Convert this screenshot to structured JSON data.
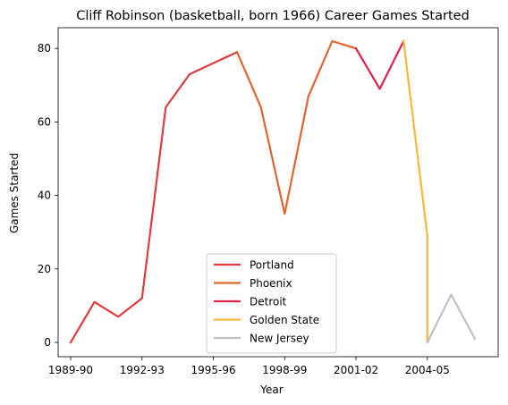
{
  "chart_data": {
    "type": "line",
    "title": "Cliff Robinson (basketball, born 1966) Career Games Started",
    "xlabel": "Year",
    "ylabel": "Games Started",
    "x_ticks": [
      "1989-90",
      "1992-93",
      "1995-96",
      "1998-99",
      "2001-02",
      "2004-05"
    ],
    "y_ticks": [
      0,
      20,
      40,
      60,
      80
    ],
    "xlim": [
      "1989-90",
      "2006-07"
    ],
    "ylim": [
      0,
      82
    ],
    "grid": false,
    "legend_position": "lower center",
    "series": [
      {
        "name": "Portland",
        "color": "#dc3d40",
        "x": [
          "1989-90",
          "1990-91",
          "1991-92",
          "1992-93",
          "1993-94",
          "1994-95",
          "1995-96",
          "1996-97"
        ],
        "values": [
          0,
          11,
          7,
          12,
          64,
          73,
          76,
          79
        ]
      },
      {
        "name": "Phoenix",
        "color": "#e06530",
        "x": [
          "1996-97",
          "1997-98",
          "1998-99",
          "1999-00",
          "2000-01",
          "2001-02"
        ],
        "values": [
          79,
          64,
          35,
          67,
          82,
          80
        ]
      },
      {
        "name": "Detroit",
        "color": "#e0224a",
        "x": [
          "2001-02",
          "2002-03",
          "2003-04"
        ],
        "values": [
          80,
          69,
          82
        ]
      },
      {
        "name": "Golden State",
        "color": "#f5b93a",
        "x": [
          "2003-04",
          "2004-05",
          "2004-05"
        ],
        "values": [
          82,
          29,
          0
        ]
      },
      {
        "name": "New Jersey",
        "color": "#c0c0c0",
        "x": [
          "2004-05",
          "2005-06",
          "2006-07"
        ],
        "values": [
          0,
          13,
          1
        ]
      }
    ]
  }
}
